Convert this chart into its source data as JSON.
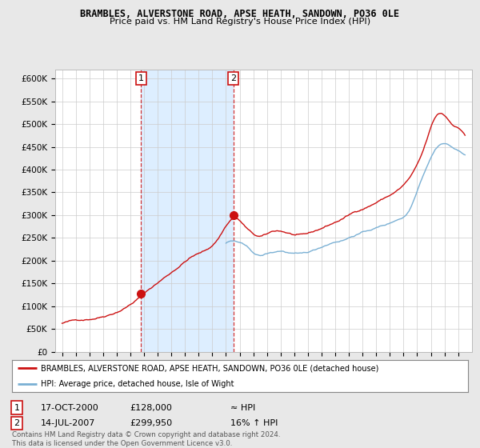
{
  "title": "BRAMBLES, ALVERSTONE ROAD, APSE HEATH, SANDOWN, PO36 0LE",
  "subtitle": "Price paid vs. HM Land Registry's House Price Index (HPI)",
  "ylim": [
    0,
    620000
  ],
  "yticks": [
    0,
    50000,
    100000,
    150000,
    200000,
    250000,
    300000,
    350000,
    400000,
    450000,
    500000,
    550000,
    600000
  ],
  "ytick_labels": [
    "£0",
    "£50K",
    "£100K",
    "£150K",
    "£200K",
    "£250K",
    "£300K",
    "£350K",
    "£400K",
    "£450K",
    "£500K",
    "£550K",
    "£600K"
  ],
  "background_color": "#e8e8e8",
  "plot_bg_color": "#ffffff",
  "hpi_color": "#7ab0d4",
  "price_color": "#cc1111",
  "shade_color": "#ddeeff",
  "sale1_date_num": 2000.79,
  "sale1_price": 128000,
  "sale2_date_num": 2007.54,
  "sale2_price": 299950,
  "legend_line1": "BRAMBLES, ALVERSTONE ROAD, APSE HEATH, SANDOWN, PO36 0LE (detached house)",
  "legend_line2": "HPI: Average price, detached house, Isle of Wight",
  "table_row1": [
    "1",
    "17-OCT-2000",
    "£128,000",
    "≈ HPI"
  ],
  "table_row2": [
    "2",
    "14-JUL-2007",
    "£299,950",
    "16% ↑ HPI"
  ],
  "footer": "Contains HM Land Registry data © Crown copyright and database right 2024.\nThis data is licensed under the Open Government Licence v3.0."
}
